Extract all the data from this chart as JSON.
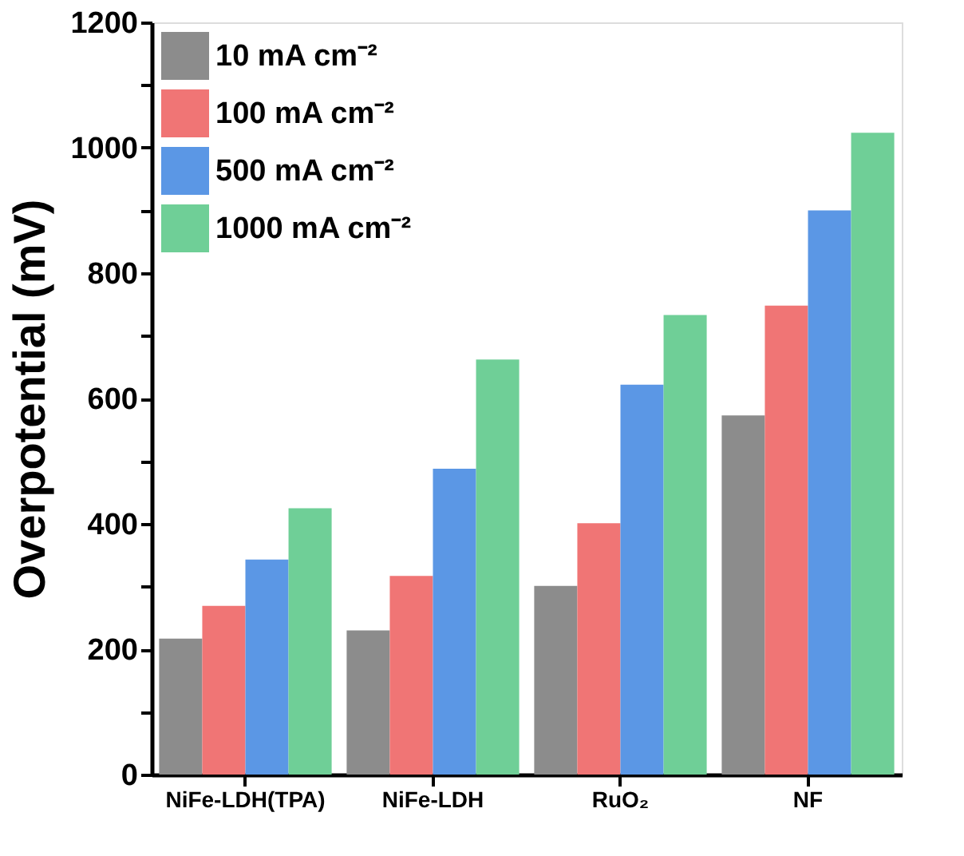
{
  "chart_data": {
    "type": "bar",
    "ylabel": "Overpotential (mV)",
    "categories": [
      "NiFe-LDH(TPA)",
      "NiFe-LDH",
      "RuO₂",
      "NF"
    ],
    "series": [
      {
        "name": "10 mA cm⁻²",
        "color": "#8c8c8c",
        "values": [
          217,
          230,
          301,
          573
        ]
      },
      {
        "name": "100 mA cm⁻²",
        "color": "#f07575",
        "values": [
          269,
          317,
          401,
          748
        ]
      },
      {
        "name": "500 mA cm⁻²",
        "color": "#5b97e5",
        "values": [
          343,
          488,
          622,
          900
        ]
      },
      {
        "name": "1000 mA cm⁻²",
        "color": "#6fcf97",
        "values": [
          425,
          662,
          733,
          1024
        ]
      }
    ],
    "ylim": [
      0,
      1200
    ],
    "yticks": [
      0,
      {
        "value": 100,
        "label": null
      },
      200,
      {
        "value": 300,
        "label": null
      },
      400,
      {
        "value": 500,
        "label": null
      },
      600,
      {
        "value": 700,
        "label": null
      },
      800,
      {
        "value": 900,
        "label": null
      },
      1000,
      {
        "value": 1100,
        "label": null
      },
      1200
    ],
    "legend": "top left",
    "grid": false
  }
}
